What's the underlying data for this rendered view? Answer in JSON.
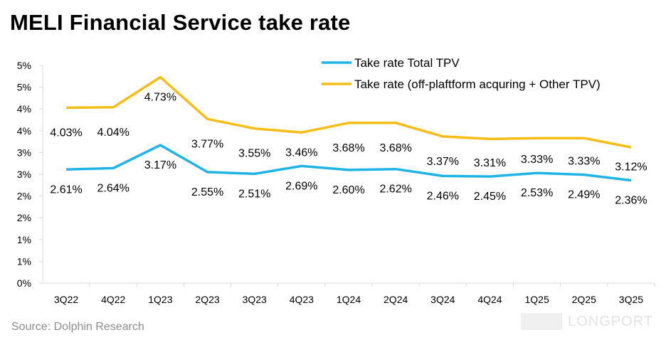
{
  "title": "MELI Financial Service take rate",
  "source": "Source: Dolphin Research",
  "watermark": "LONGPORT",
  "colors": {
    "series0": "#1fb4e6",
    "series1": "#f5bd16",
    "axis": "#d9d9d9"
  },
  "chart_data": {
    "type": "line",
    "title": "MELI Financial Service take rate",
    "categories": [
      "3Q22",
      "4Q22",
      "1Q23",
      "2Q23",
      "3Q23",
      "4Q23",
      "1Q24",
      "2Q24",
      "3Q24",
      "4Q24",
      "1Q25",
      "2Q25",
      "3Q25"
    ],
    "series": [
      {
        "name": "Take rate Total TPV",
        "values": [
          2.61,
          2.64,
          3.17,
          2.55,
          2.51,
          2.69,
          2.6,
          2.62,
          2.46,
          2.45,
          2.53,
          2.49,
          2.36
        ],
        "labels": [
          "2.61%",
          "2.64%",
          "3.17%",
          "2.55%",
          "2.51%",
          "2.69%",
          "2.60%",
          "2.62%",
          "2.46%",
          "2.45%",
          "2.53%",
          "2.49%",
          "2.36%"
        ]
      },
      {
        "name": "Take rate (off-plaftform acquring + Other TPV)",
        "values": [
          4.03,
          4.04,
          4.73,
          3.77,
          3.55,
          3.46,
          3.68,
          3.68,
          3.37,
          3.31,
          3.33,
          3.33,
          3.12
        ],
        "labels": [
          "4.03%",
          "4.04%",
          "4.73%",
          "3.77%",
          "3.55%",
          "3.46%",
          "3.68%",
          "3.68%",
          "3.37%",
          "3.31%",
          "3.33%",
          "3.33%",
          "3.12%"
        ]
      }
    ],
    "ylim": [
      0,
      5
    ],
    "yticks": [
      "0%",
      "1%",
      "1%",
      "2%",
      "2%",
      "3%",
      "3%",
      "4%",
      "4%",
      "5%",
      "5%"
    ],
    "legend": "top-right",
    "grid": false
  }
}
